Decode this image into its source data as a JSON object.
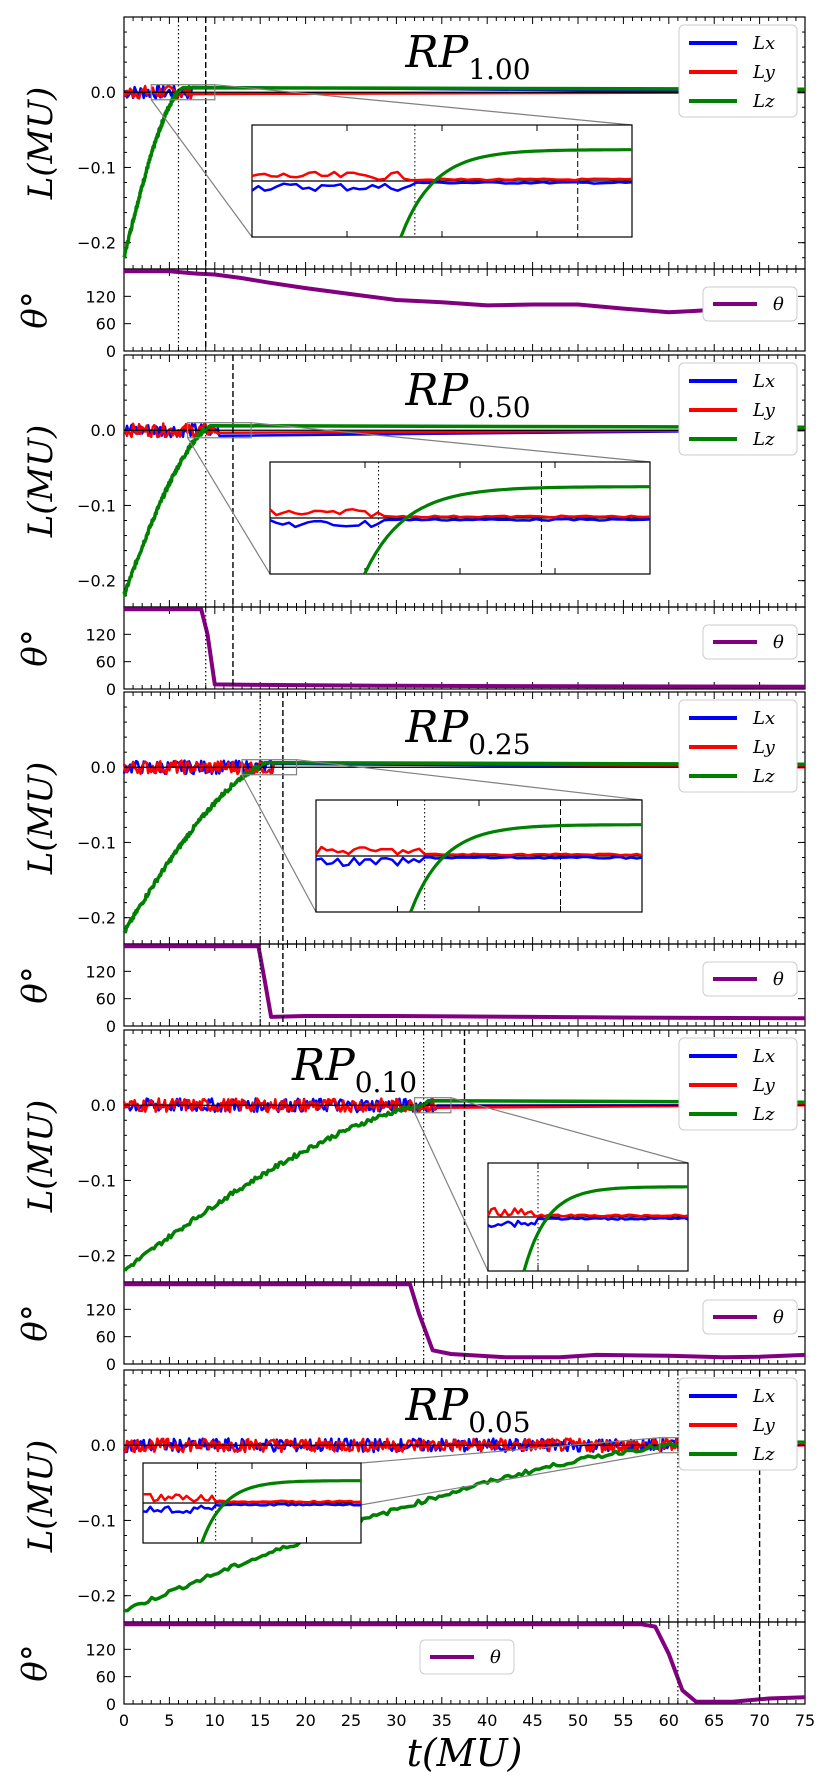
{
  "figure": {
    "xlabel": "t(MU)",
    "xticks": [
      "0",
      "5",
      "10",
      "15",
      "20",
      "25",
      "30",
      "35",
      "40",
      "45",
      "50",
      "55",
      "60",
      "65",
      "70",
      "75"
    ],
    "xlim": [
      0,
      75
    ],
    "colors": {
      "Lx": "#0000ff",
      "Ly": "#ff0000",
      "Lz": "#008000",
      "theta": "#800080",
      "ref": "#000000",
      "zoom": "#808080"
    }
  },
  "chart_data": [
    {
      "type": "line",
      "title": "RP",
      "title_sub": "1.00",
      "ylabel": "L(MU)",
      "ylim": [
        -0.235,
        0.1
      ],
      "yticks": [
        "0.0",
        "−0.1",
        "−0.2"
      ],
      "yticks_values": [
        0.0,
        -0.1,
        -0.2
      ],
      "vlines": {
        "dotted": 6.0,
        "dashed": 9.0
      },
      "legend": [
        "Lx",
        "Ly",
        "Lz"
      ],
      "lz_end": 6.0,
      "lz_start": -0.22,
      "zoom_x": [
        3.0,
        10.0
      ],
      "theta": {
        "ylabel": "θ°",
        "ylim": [
          0,
          180
        ],
        "yticks": [
          "120",
          "60",
          "0"
        ],
        "yticks_values": [
          120,
          60,
          0
        ],
        "legend": [
          "θ"
        ],
        "legend_pos": "right",
        "points": [
          [
            0,
            175
          ],
          [
            5,
            175
          ],
          [
            8,
            170
          ],
          [
            10,
            168
          ],
          [
            13,
            160
          ],
          [
            16,
            150
          ],
          [
            20,
            138
          ],
          [
            25,
            125
          ],
          [
            30,
            112
          ],
          [
            35,
            107
          ],
          [
            40,
            100
          ],
          [
            45,
            102
          ],
          [
            50,
            102
          ],
          [
            55,
            93
          ],
          [
            60,
            85
          ],
          [
            63,
            88
          ],
          [
            66,
            92
          ]
        ]
      }
    },
    {
      "type": "line",
      "title": "RP",
      "title_sub": "0.50",
      "ylabel": "L(MU)",
      "ylim": [
        -0.235,
        0.1
      ],
      "yticks": [
        "0.0",
        "−0.1",
        "−0.2"
      ],
      "yticks_values": [
        0.0,
        -0.1,
        -0.2
      ],
      "vlines": {
        "dotted": 9.0,
        "dashed": 12.0
      },
      "legend": [
        "Lx",
        "Ly",
        "Lz"
      ],
      "lz_end": 9.0,
      "lz_start": -0.22,
      "zoom_x": [
        7.0,
        14.0
      ],
      "theta": {
        "ylabel": "θ°",
        "ylim": [
          0,
          180
        ],
        "yticks": [
          "120",
          "60",
          "0"
        ],
        "yticks_values": [
          120,
          60,
          0
        ],
        "legend": [
          "θ"
        ],
        "legend_pos": "right",
        "points": [
          [
            0,
            175
          ],
          [
            8.5,
            175
          ],
          [
            9.2,
            120
          ],
          [
            10,
            10
          ],
          [
            15,
            9
          ],
          [
            30,
            7
          ],
          [
            50,
            6
          ],
          [
            75,
            5
          ]
        ]
      }
    },
    {
      "type": "line",
      "title": "RP",
      "title_sub": "0.25",
      "ylabel": "L(MU)",
      "ylim": [
        -0.235,
        0.1
      ],
      "yticks": [
        "0.0",
        "−0.1",
        "−0.2"
      ],
      "yticks_values": [
        0.0,
        -0.1,
        -0.2
      ],
      "vlines": {
        "dotted": 15.0,
        "dashed": 17.5
      },
      "legend": [
        "Lx",
        "Ly",
        "Lz"
      ],
      "lz_end": 15.0,
      "lz_start": -0.22,
      "zoom_x": [
        13.0,
        19.0
      ],
      "theta": {
        "ylabel": "θ°",
        "ylim": [
          0,
          180
        ],
        "yticks": [
          "120",
          "60",
          "0"
        ],
        "yticks_values": [
          120,
          60,
          0
        ],
        "legend": [
          "θ"
        ],
        "legend_pos": "right",
        "points": [
          [
            0,
            175
          ],
          [
            14.8,
            175
          ],
          [
            15.5,
            100
          ],
          [
            16.2,
            20
          ],
          [
            20,
            22
          ],
          [
            30,
            22
          ],
          [
            45,
            20
          ],
          [
            60,
            18
          ],
          [
            75,
            17
          ]
        ]
      }
    },
    {
      "type": "line",
      "title": "RP",
      "title_sub": "0.10",
      "ylabel": "L(MU)",
      "ylim": [
        -0.235,
        0.1
      ],
      "yticks": [
        "0.0",
        "−0.1",
        "−0.2"
      ],
      "yticks_values": [
        0.0,
        -0.1,
        -0.2
      ],
      "vlines": {
        "dotted": 33.0,
        "dashed": 37.5
      },
      "legend": [
        "Lx",
        "Ly",
        "Lz"
      ],
      "lz_end": 33.0,
      "lz_start": -0.22,
      "zoom_x": [
        32.0,
        36.0
      ],
      "theta": {
        "ylabel": "θ°",
        "ylim": [
          0,
          180
        ],
        "yticks": [
          "120",
          "60",
          "0"
        ],
        "yticks_values": [
          120,
          60,
          0
        ],
        "legend": [
          "θ"
        ],
        "legend_pos": "right",
        "points": [
          [
            0,
            175
          ],
          [
            31.5,
            175
          ],
          [
            32.5,
            110
          ],
          [
            34,
            30
          ],
          [
            36,
            22
          ],
          [
            42,
            15
          ],
          [
            48,
            15
          ],
          [
            52,
            20
          ],
          [
            60,
            18
          ],
          [
            66,
            15
          ],
          [
            70,
            16
          ],
          [
            75,
            20
          ]
        ]
      }
    },
    {
      "type": "line",
      "title": "RP",
      "title_sub": "0.05",
      "ylabel": "L(MU)",
      "ylim": [
        -0.235,
        0.1
      ],
      "yticks": [
        "0.0",
        "−0.1",
        "−0.2"
      ],
      "yticks_values": [
        0.0,
        -0.1,
        -0.2
      ],
      "vlines": {
        "dotted": 61.0,
        "dashed": 70.0
      },
      "legend": [
        "Lx",
        "Ly",
        "Lz"
      ],
      "lz_end": 61.0,
      "lz_start": -0.22,
      "zoom_x": [
        59.0,
        65.0
      ],
      "theta": {
        "ylabel": "θ°",
        "ylim": [
          0,
          180
        ],
        "yticks": [
          "120",
          "60",
          "0"
        ],
        "yticks_values": [
          120,
          60,
          0
        ],
        "legend": [
          "θ"
        ],
        "legend_pos": "center",
        "points": [
          [
            0,
            175
          ],
          [
            57,
            175
          ],
          [
            58.5,
            170
          ],
          [
            60,
            110
          ],
          [
            61.5,
            30
          ],
          [
            63,
            5
          ],
          [
            67,
            5
          ],
          [
            71,
            12
          ],
          [
            75,
            15
          ]
        ]
      }
    }
  ]
}
